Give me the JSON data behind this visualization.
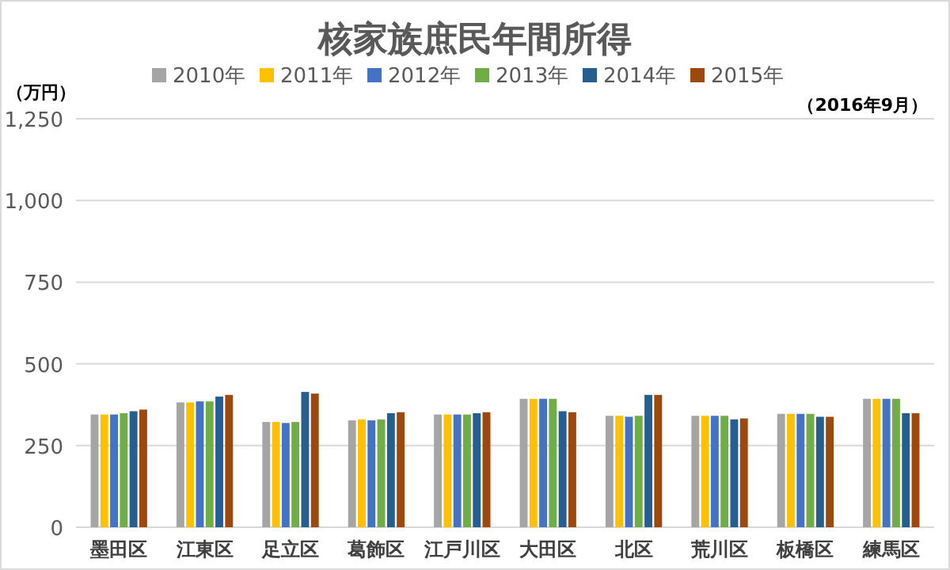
{
  "chart_data": {
    "type": "bar",
    "title": "核家族庶民年間所得",
    "ylabel": "（万円）",
    "annotations": [
      "（2016年9月）"
    ],
    "categories": [
      "墨田区",
      "江東区",
      "足立区",
      "葛飾区",
      "江戸川区",
      "大田区",
      "北区",
      "荒川区",
      "板橋区",
      "練馬区"
    ],
    "series": [
      {
        "name": "2010年",
        "color": "#a5a5a5",
        "values": [
          345,
          382,
          322,
          327,
          345,
          393,
          341,
          341,
          347,
          393
        ]
      },
      {
        "name": "2011年",
        "color": "#ffc000",
        "values": [
          345,
          382,
          322,
          330,
          345,
          393,
          341,
          341,
          347,
          393
        ]
      },
      {
        "name": "2012年",
        "color": "#4472c4",
        "values": [
          345,
          385,
          319,
          327,
          345,
          393,
          338,
          341,
          347,
          393
        ]
      },
      {
        "name": "2013年",
        "color": "#70ad47",
        "values": [
          349,
          385,
          322,
          330,
          345,
          393,
          341,
          341,
          347,
          393
        ]
      },
      {
        "name": "2014年",
        "color": "#255e91",
        "values": [
          355,
          400,
          414,
          349,
          349,
          355,
          405,
          330,
          338,
          349
        ]
      },
      {
        "name": "2015年",
        "color": "#9e480e",
        "values": [
          360,
          405,
          409,
          352,
          352,
          352,
          405,
          333,
          338,
          349
        ]
      }
    ],
    "ylim": [
      0,
      1250
    ],
    "yticks": [
      {
        "value": 0,
        "label": "0"
      },
      {
        "value": 250,
        "label": "250"
      },
      {
        "value": 500,
        "label": "500"
      },
      {
        "value": 750,
        "label": "750"
      },
      {
        "value": 1000,
        "label": "1,000"
      },
      {
        "value": 1250,
        "label": "1,250"
      }
    ],
    "grid": "y",
    "legend": "top"
  }
}
